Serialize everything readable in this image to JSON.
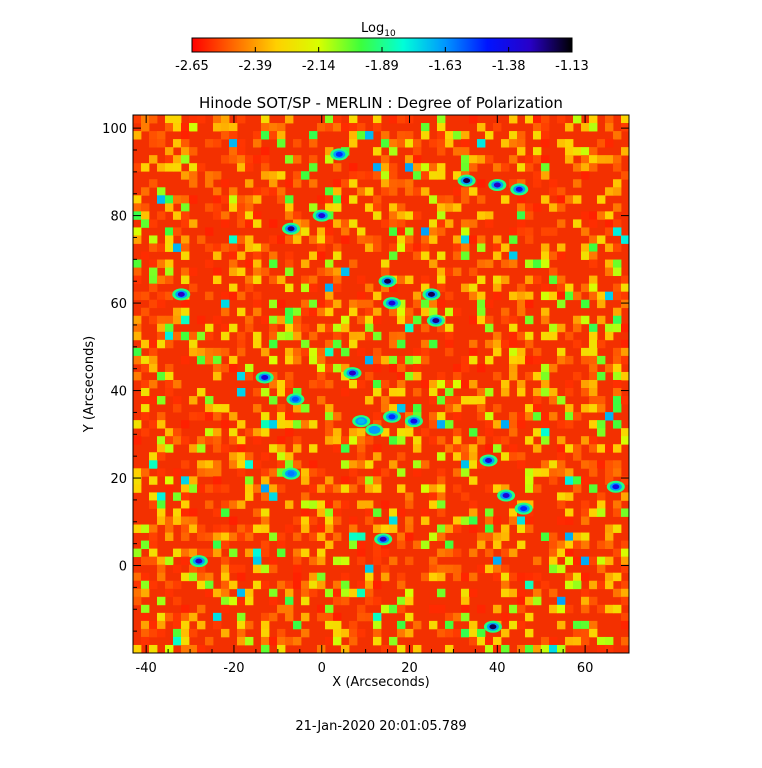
{
  "colorbar": {
    "label": "Log",
    "label_sub": "10",
    "tick_labels": [
      "-2.65",
      "-2.39",
      "-2.14",
      "-1.89",
      "-1.63",
      "-1.38",
      "-1.13"
    ],
    "range": [
      -2.65,
      -1.13
    ],
    "colors": [
      "#ff0000",
      "#ff6a00",
      "#ffd000",
      "#d8ff00",
      "#3cff3c",
      "#00ffd8",
      "#0096ff",
      "#0014ff",
      "#2800c8",
      "#000000"
    ]
  },
  "chart_data": {
    "type": "heatmap",
    "title": "Hinode SOT/SP - MERLIN : Degree of Polarization",
    "xlabel": "X (Arcseconds)",
    "ylabel": "Y (Arcseconds)",
    "xlim": [
      -43,
      70
    ],
    "ylim": [
      -20,
      103
    ],
    "x_ticks": [
      -40,
      -20,
      0,
      20,
      40,
      60
    ],
    "y_ticks": [
      0,
      20,
      40,
      60,
      80,
      100
    ],
    "color_scale": "log10",
    "value_range": [
      -2.65,
      -1.13
    ],
    "background_level": -2.6,
    "features": [
      {
        "x": -7,
        "y": 77,
        "level": -1.25
      },
      {
        "x": 0,
        "y": 80,
        "level": -1.35
      },
      {
        "x": 4,
        "y": 94,
        "level": -1.5
      },
      {
        "x": 33,
        "y": 88,
        "level": -1.2
      },
      {
        "x": 40,
        "y": 87,
        "level": -1.3
      },
      {
        "x": 45,
        "y": 86,
        "level": -1.4
      },
      {
        "x": 15,
        "y": 65,
        "level": -1.2
      },
      {
        "x": 16,
        "y": 60,
        "level": -1.35
      },
      {
        "x": 25,
        "y": 62,
        "level": -1.2
      },
      {
        "x": 26,
        "y": 56,
        "level": -1.25
      },
      {
        "x": -32,
        "y": 62,
        "level": -1.3
      },
      {
        "x": -13,
        "y": 43,
        "level": -1.35
      },
      {
        "x": -6,
        "y": 38,
        "level": -1.55
      },
      {
        "x": 7,
        "y": 44,
        "level": -1.3
      },
      {
        "x": 9,
        "y": 33,
        "level": -1.7
      },
      {
        "x": 12,
        "y": 31,
        "level": -1.65
      },
      {
        "x": 16,
        "y": 34,
        "level": -1.5
      },
      {
        "x": 21,
        "y": 33,
        "level": -1.4
      },
      {
        "x": 38,
        "y": 24,
        "level": -1.35
      },
      {
        "x": 42,
        "y": 16,
        "level": -1.35
      },
      {
        "x": 46,
        "y": 13,
        "level": -1.5
      },
      {
        "x": 67,
        "y": 18,
        "level": -1.4
      },
      {
        "x": -7,
        "y": 21,
        "level": -1.6
      },
      {
        "x": 14,
        "y": 6,
        "level": -1.3
      },
      {
        "x": -28,
        "y": 1,
        "level": -1.3
      },
      {
        "x": 39,
        "y": -14,
        "level": -1.2
      }
    ]
  },
  "footer": {
    "timestamp": "21-Jan-2020 20:01:05.789"
  }
}
